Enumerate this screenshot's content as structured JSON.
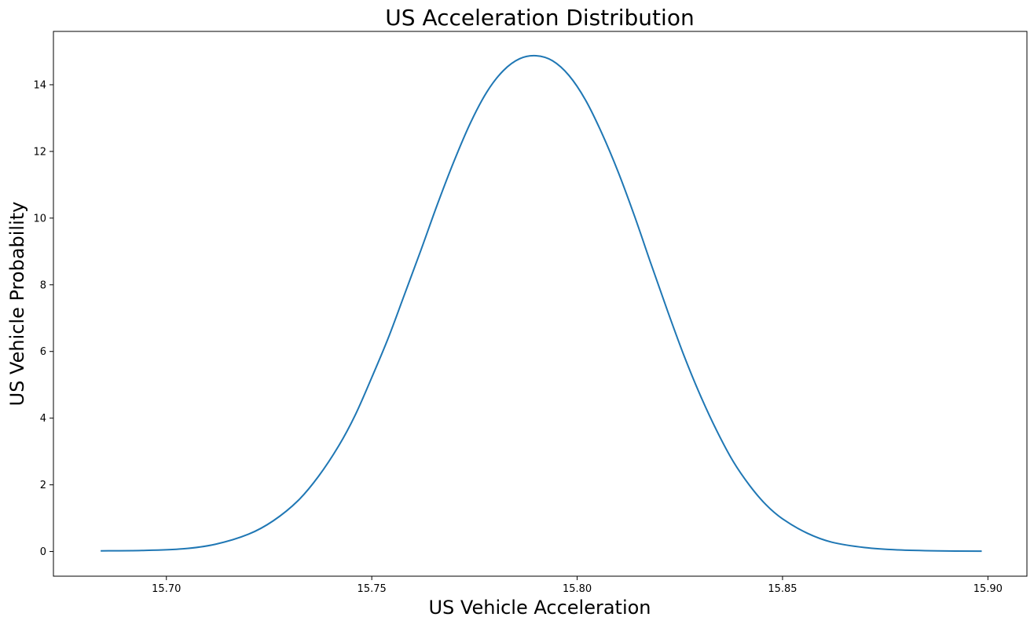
{
  "chart_data": {
    "type": "line",
    "title": "US Acceleration Distribution",
    "xlabel": "US Vehicle Acceleration",
    "ylabel": "US Vehicle Probability",
    "xlim": [
      15.6725,
      15.9095
    ],
    "ylim": [
      -0.74,
      15.6
    ],
    "xticks": [
      15.7,
      15.75,
      15.8,
      15.85,
      15.9
    ],
    "xtick_labels": [
      "15.70",
      "15.75",
      "15.80",
      "15.85",
      "15.90"
    ],
    "yticks": [
      0,
      2,
      4,
      6,
      8,
      10,
      12,
      14
    ],
    "ytick_labels": [
      "0",
      "2",
      "4",
      "6",
      "8",
      "10",
      "12",
      "14"
    ],
    "grid": false,
    "legend": "none",
    "series": [
      {
        "color": "#1f77b4",
        "x": [
          15.684,
          15.694,
          15.704,
          15.712,
          15.72,
          15.726,
          15.732,
          15.737,
          15.742,
          15.746,
          15.75,
          15.754,
          15.758,
          15.762,
          15.766,
          15.77,
          15.774,
          15.778,
          15.782,
          15.786,
          15.79,
          15.794,
          15.798,
          15.802,
          15.806,
          15.81,
          15.814,
          15.818,
          15.822,
          15.826,
          15.83,
          15.834,
          15.838,
          15.842,
          15.846,
          15.85,
          15.856,
          15.862,
          15.87,
          15.878,
          15.888,
          15.8985
        ],
        "y": [
          0.02,
          0.03,
          0.08,
          0.22,
          0.52,
          0.92,
          1.52,
          2.25,
          3.18,
          4.1,
          5.22,
          6.4,
          7.72,
          9.05,
          10.42,
          11.7,
          12.85,
          13.78,
          14.42,
          14.78,
          14.87,
          14.72,
          14.28,
          13.55,
          12.55,
          11.38,
          10.05,
          8.62,
          7.22,
          5.88,
          4.68,
          3.62,
          2.7,
          1.98,
          1.4,
          0.98,
          0.55,
          0.28,
          0.12,
          0.05,
          0.02,
          0.01
        ]
      }
    ]
  }
}
